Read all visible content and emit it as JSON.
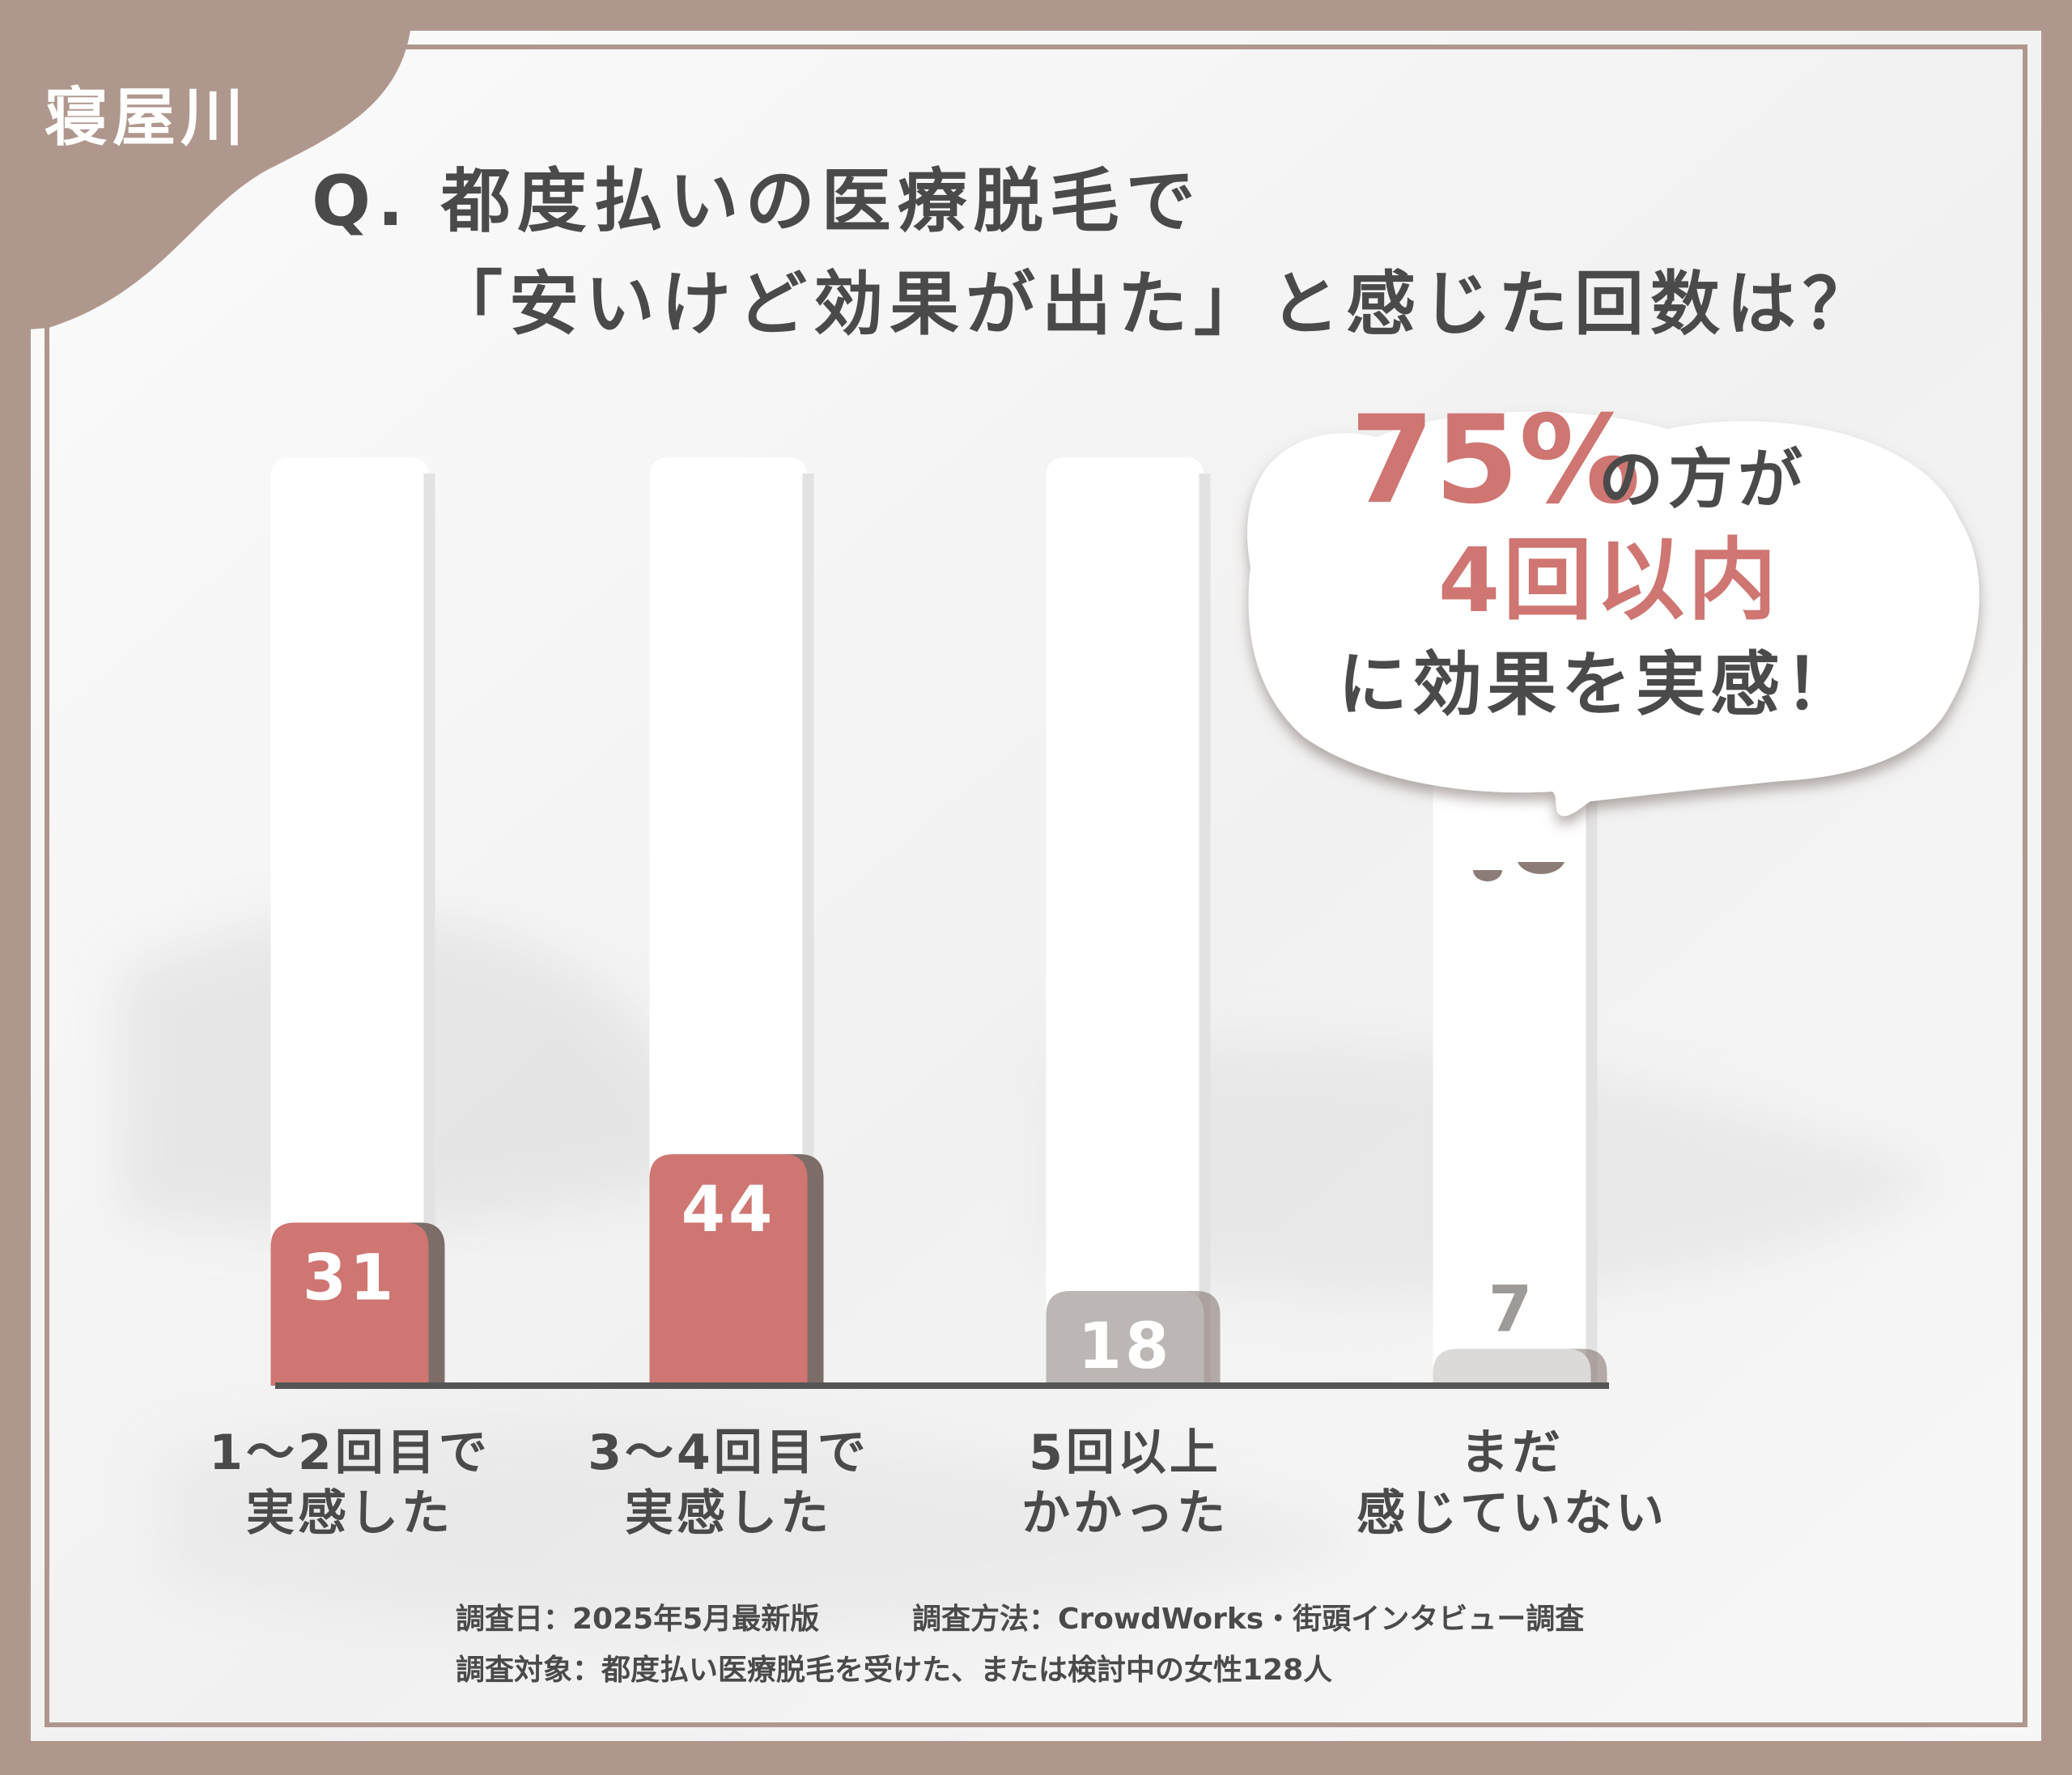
{
  "region": "寝屋川",
  "title": {
    "line1": "Q. 都度払いの医療脱毛で",
    "line2": "「安いけど効果が出た」と感じた回数は？"
  },
  "callout": {
    "percent": "75%",
    "line1_rest": "の方が",
    "line2": "4回以内",
    "line3": "に効果を実感！"
  },
  "chart_data": {
    "type": "bar",
    "categories": [
      [
        "1〜2回目で",
        "実感した"
      ],
      [
        "3〜4回目で",
        "実感した"
      ],
      [
        "5回以上",
        "かかった"
      ],
      [
        "まだ",
        "感じていない"
      ]
    ],
    "values": [
      31,
      44,
      18,
      7
    ],
    "data_labels": [
      "31",
      "44",
      "18",
      "7"
    ],
    "ylim": [
      0,
      100
    ],
    "grid": false,
    "colors": [
      "#cf7672",
      "#cf7672",
      "#bcb7b4",
      "#dcdad8"
    ],
    "label_colors": [
      "#ffffff",
      "#ffffff",
      "#ffffff",
      "#9d9a98"
    ]
  },
  "footer": {
    "date": "調査日：2025年5月最新版",
    "method": "調査方法：CrowdWorks・街頭インタビュー調査",
    "target": "調査対象：都度払い医療脱毛を受けた、または検討中の女性128人"
  },
  "colors": {
    "frame": "#b0978d",
    "accent": "#cf7672",
    "text": "#4a4a4a",
    "axis": "#555555"
  }
}
